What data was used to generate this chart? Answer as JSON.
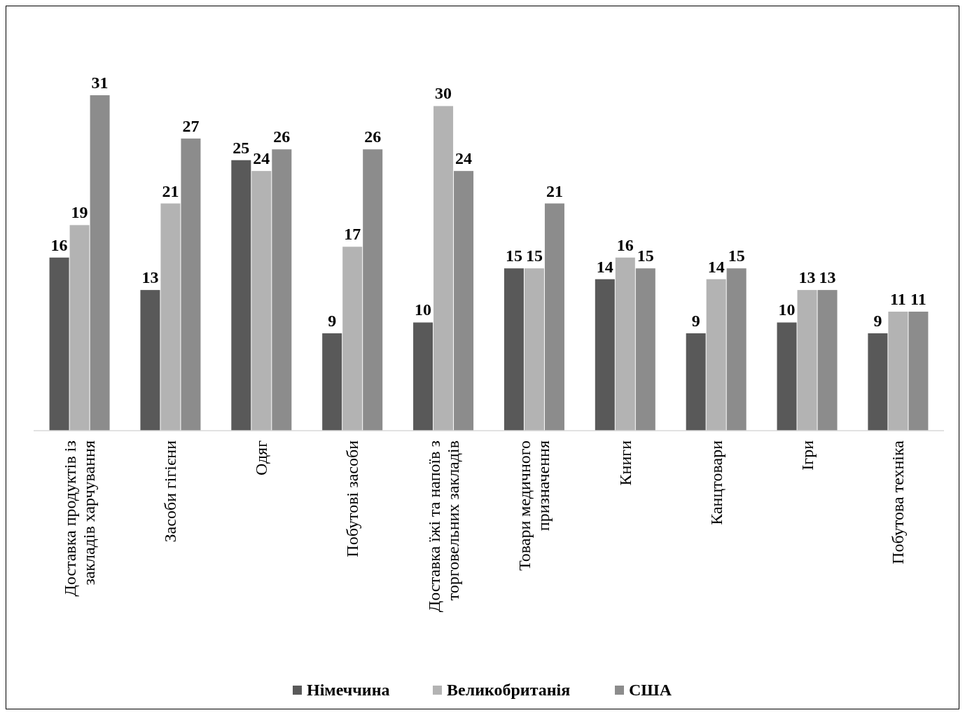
{
  "chart_data": {
    "type": "bar",
    "categories": [
      "Доставка продуктів із закладів харчування",
      "Засоби гігієни",
      "Одяг",
      "Побутові засоби",
      "Доставка їжі та напоїв з торговельних закладів",
      "Товари медичного призначення",
      "Книги",
      "Канцтовари",
      "Ігри",
      "Побутова техніка"
    ],
    "series": [
      {
        "name": "Німеччина",
        "color": "#595959",
        "values": [
          16,
          13,
          25,
          9,
          10,
          15,
          14,
          9,
          10,
          9
        ]
      },
      {
        "name": "Великобританія",
        "color": "#b3b3b3",
        "values": [
          19,
          21,
          24,
          17,
          30,
          15,
          16,
          14,
          13,
          11
        ]
      },
      {
        "name": "США",
        "color": "#8c8c8c",
        "values": [
          31,
          27,
          26,
          26,
          24,
          21,
          15,
          15,
          13,
          11
        ]
      }
    ],
    "data_labels": true,
    "legend": "bottom"
  }
}
